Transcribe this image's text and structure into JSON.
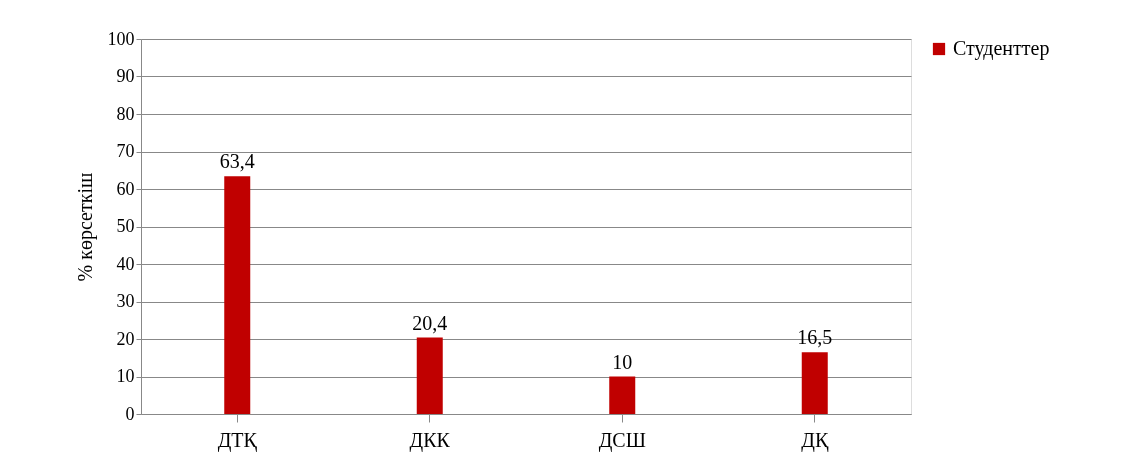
{
  "chart_data": {
    "type": "bar",
    "ylabel": "% көрсеткіш",
    "categories": [
      "ДТҚ",
      "ДКК",
      "ДСШ",
      "ДҚ"
    ],
    "series": [
      {
        "name": "Студенттер",
        "color": "#c00000",
        "values": [
          63.4,
          20.4,
          10,
          16.5
        ],
        "value_labels": [
          "63,4",
          "20,4",
          "10",
          "16,5"
        ]
      }
    ],
    "ylim": [
      0,
      100
    ],
    "yticks": [
      0,
      10,
      20,
      30,
      40,
      50,
      60,
      70,
      80,
      90,
      100
    ],
    "grid": "y",
    "legend": "right"
  }
}
